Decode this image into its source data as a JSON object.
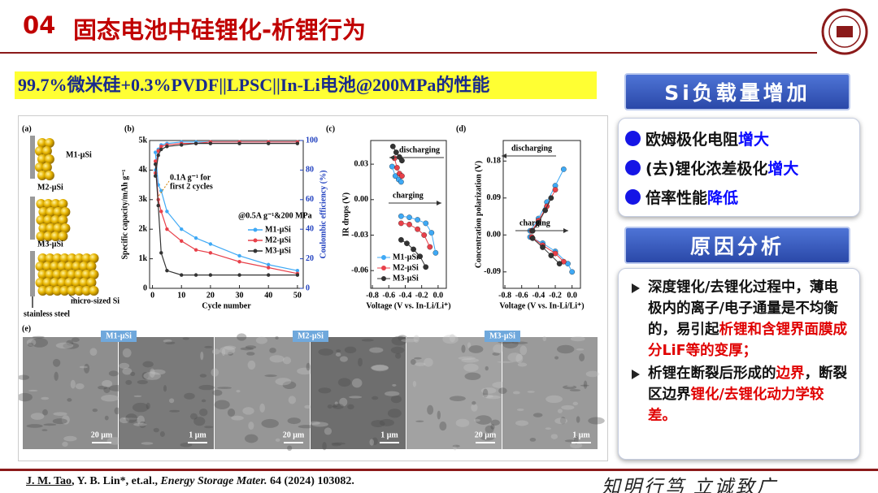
{
  "header": {
    "number": "04",
    "title": "固态电池中硅锂化-析锂行为"
  },
  "subtitle": "99.7%微米硅+0.3%PVDF||LPSC||In-Li电池@200MPa的性能",
  "figure": {
    "panel_a": {
      "label": "(a)",
      "samples": [
        "M1-μSi",
        "M2-μSi",
        "M3-μSi"
      ],
      "particle_label": "micro-sized Si",
      "substrate_label": "stainless steel"
    },
    "panel_b": {
      "type": "line",
      "label": "(b)",
      "x_label": "Cycle number",
      "y_label": "Specific capacity/mAh g⁻¹",
      "y2_label": "Coulombic efficiency (%)",
      "annotations": [
        "0.1A g⁻¹ for",
        "first 2 cycles",
        "@0.5A g⁻¹&200 MPa"
      ],
      "x": [
        1,
        2,
        3,
        5,
        10,
        15,
        20,
        30,
        40,
        50
      ],
      "xlim": [
        -1,
        52
      ],
      "xticks": [
        0,
        10,
        20,
        30,
        40,
        50
      ],
      "ylim": [
        0,
        5000
      ],
      "yticks": [
        0,
        {
          "value": 1000,
          "label": "1k"
        },
        {
          "value": 2000,
          "label": "2k"
        },
        {
          "value": 3000,
          "label": "3k"
        },
        {
          "value": 4000,
          "label": "4k"
        },
        {
          "value": 5000,
          "label": "5k"
        }
      ],
      "y2lim": [
        0,
        100
      ],
      "y2ticks": [
        0,
        20,
        40,
        60,
        80,
        100
      ],
      "series": [
        {
          "name": "M1-μSi",
          "color": "#3fa9f5",
          "values": [
            4600,
            3500,
            3300,
            2600,
            2000,
            1700,
            1500,
            1100,
            800,
            600
          ],
          "ce": [
            80,
            94,
            97,
            98,
            99,
            99,
            99,
            99,
            99,
            99
          ]
        },
        {
          "name": "M2-μSi",
          "color": "#e8414a",
          "values": [
            4300,
            3000,
            2600,
            2000,
            1600,
            1300,
            1200,
            900,
            700,
            500
          ],
          "ce": [
            78,
            93,
            96,
            97,
            98,
            98,
            99,
            99,
            99,
            99
          ]
        },
        {
          "name": "M3-μSi",
          "color": "#333333",
          "values": [
            4200,
            2800,
            1200,
            600,
            450,
            450,
            450,
            450,
            450,
            450
          ],
          "ce": [
            76,
            90,
            94,
            96,
            97,
            98,
            98,
            98,
            98,
            98
          ]
        }
      ]
    },
    "panel_c": {
      "type": "line",
      "label": "(c)",
      "x_label": "Voltage (V vs. In-Li/Li⁺)",
      "y_label": "IR drops (V)",
      "annotations": [
        "discharging",
        "charging"
      ],
      "xlim": [
        -0.82,
        0.1
      ],
      "xticks": [
        -0.8,
        -0.6,
        -0.4,
        -0.2,
        {
          "value": 0,
          "label": "0.0"
        }
      ],
      "ylim": [
        -0.075,
        0.05
      ],
      "yticks": [
        -0.06,
        -0.03,
        {
          "value": 0,
          "label": "0.00"
        },
        0.03
      ],
      "series": [
        {
          "name": "M1-μSi",
          "color": "#3fa9f5",
          "x": [
            -0.56,
            -0.52,
            -0.48,
            -0.45,
            null,
            -0.45,
            -0.35,
            -0.25,
            -0.15,
            -0.08,
            -0.03
          ],
          "values": [
            0.028,
            0.02,
            0.017,
            0.015,
            null,
            -0.014,
            -0.015,
            -0.017,
            -0.02,
            -0.028,
            -0.045
          ]
        },
        {
          "name": "M2-μSi",
          "color": "#e8414a",
          "x": [
            -0.53,
            -0.5,
            -0.47,
            -0.44,
            null,
            -0.45,
            -0.35,
            -0.25,
            -0.17,
            -0.1
          ],
          "values": [
            0.035,
            0.027,
            0.022,
            0.02,
            null,
            -0.02,
            -0.021,
            -0.025,
            -0.03,
            -0.04
          ]
        },
        {
          "name": "M3-μSi",
          "color": "#333333",
          "x": [
            -0.55,
            -0.51,
            -0.47,
            -0.44,
            null,
            -0.45,
            -0.38,
            -0.3,
            -0.22,
            -0.15
          ],
          "values": [
            0.045,
            0.04,
            0.036,
            0.033,
            null,
            -0.034,
            -0.037,
            -0.042,
            -0.048,
            -0.057
          ]
        }
      ]
    },
    "panel_d": {
      "type": "line",
      "label": "(d)",
      "x_label": "Voltage (V vs. In-Li/Li⁺)",
      "y_label": "Concentration polarization (V)",
      "annotations": [
        "discharging",
        "charging"
      ],
      "xlim": [
        -0.82,
        0.1
      ],
      "xticks": [
        -0.8,
        -0.6,
        -0.4,
        -0.2,
        {
          "value": 0,
          "label": "0.0"
        }
      ],
      "ylim": [
        -0.13,
        0.23
      ],
      "yticks": [
        -0.09,
        {
          "value": 0,
          "label": "0.00"
        },
        0.09,
        0.18
      ],
      "series": [
        {
          "color": "#3fa9f5",
          "x": [
            -0.5,
            -0.4,
            -0.3,
            -0.2,
            -0.1,
            null,
            -0.5,
            -0.35,
            -0.2,
            -0.05,
            0.0
          ],
          "values": [
            0.01,
            0.04,
            0.08,
            0.12,
            0.16,
            null,
            -0.005,
            -0.02,
            -0.04,
            -0.07,
            -0.09
          ]
        },
        {
          "color": "#e8414a",
          "x": [
            -0.48,
            -0.4,
            -0.3,
            -0.2,
            null,
            -0.48,
            -0.35,
            -0.2,
            -0.1
          ],
          "values": [
            0.01,
            0.035,
            0.07,
            0.11,
            null,
            -0.005,
            -0.025,
            -0.045,
            -0.065
          ]
        },
        {
          "color": "#333333",
          "x": [
            -0.47,
            -0.4,
            -0.32,
            -0.25,
            null,
            -0.47,
            -0.35,
            -0.25,
            -0.15
          ],
          "values": [
            0.01,
            0.03,
            0.06,
            0.09,
            null,
            -0.008,
            -0.03,
            -0.05,
            -0.07
          ]
        }
      ]
    },
    "panel_e": {
      "label": "(e)",
      "samples": [
        "M1-μSi",
        "M2-μSi",
        "M3-μSi"
      ],
      "scale_bars": [
        "20 μm",
        "1 μm",
        "20 μm",
        "1 μm",
        "20 μm",
        "1 μm"
      ]
    }
  },
  "findings": {
    "title": "Si负载量增加",
    "items": [
      {
        "text": "欧姆极化电阻",
        "emphasis": "增大"
      },
      {
        "text": "(去)锂化浓差极化",
        "emphasis": "增大"
      },
      {
        "text": "倍率性能",
        "emphasis": "降低"
      }
    ]
  },
  "reasons": {
    "title": "原因分析",
    "items": [
      [
        {
          "text": "深度锂化/去锂化过程中，薄电极内的离子/电子通量是不均衡的，易引起",
          "highlight": false
        },
        {
          "text": "析锂和含锂界面膜成分LiF等的变厚；",
          "highlight": true
        }
      ],
      [
        {
          "text": "析锂在断裂后形成的",
          "highlight": false
        },
        {
          "text": "边界",
          "highlight": true
        },
        {
          "text": "，断裂区边界",
          "highlight": false
        },
        {
          "text": "锂化/去锂化动力学较差。",
          "highlight": true
        }
      ]
    ]
  },
  "citation": {
    "first_author": "J. M. Tao",
    "rest": ", Y. B. Lin*, et.al., ",
    "journal": "Energy Storage Mater.",
    "details": " 64 (2024) 103082."
  },
  "motto": "知明行笃  立诚致广"
}
